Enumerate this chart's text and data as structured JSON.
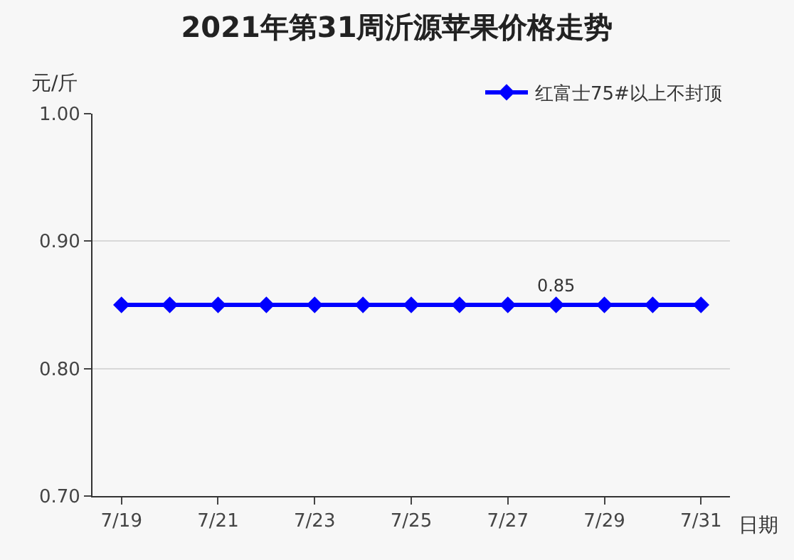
{
  "chart_data": {
    "type": "line",
    "title": "2021年第31周沂源苹果价格走势",
    "xlabel": "日期",
    "ylabel": "元/斤",
    "categories": [
      "7/19",
      null,
      "7/21",
      null,
      "7/23",
      null,
      "7/25",
      null,
      "7/27",
      null,
      "7/29",
      null,
      "7/31"
    ],
    "series": [
      {
        "name": "红富士75#以上不封顶",
        "color": "#0000ff",
        "values": [
          0.85,
          0.85,
          0.85,
          0.85,
          0.85,
          0.85,
          0.85,
          0.85,
          0.85,
          0.85,
          0.85,
          0.85,
          0.85
        ],
        "value_labels": [
          null,
          null,
          null,
          null,
          null,
          null,
          null,
          null,
          null,
          "0.85",
          null,
          null,
          null
        ]
      }
    ],
    "ylim": [
      0.7,
      1.0
    ],
    "yticks": [
      {
        "value": 0.7,
        "label": "0.70"
      },
      {
        "value": 0.8,
        "label": "0.80"
      },
      {
        "value": 0.9,
        "label": "0.90"
      },
      {
        "value": 1.0,
        "label": "1.00"
      }
    ],
    "grid": "y",
    "legend": "top right",
    "marker": "diamond",
    "line_style": "solid"
  }
}
